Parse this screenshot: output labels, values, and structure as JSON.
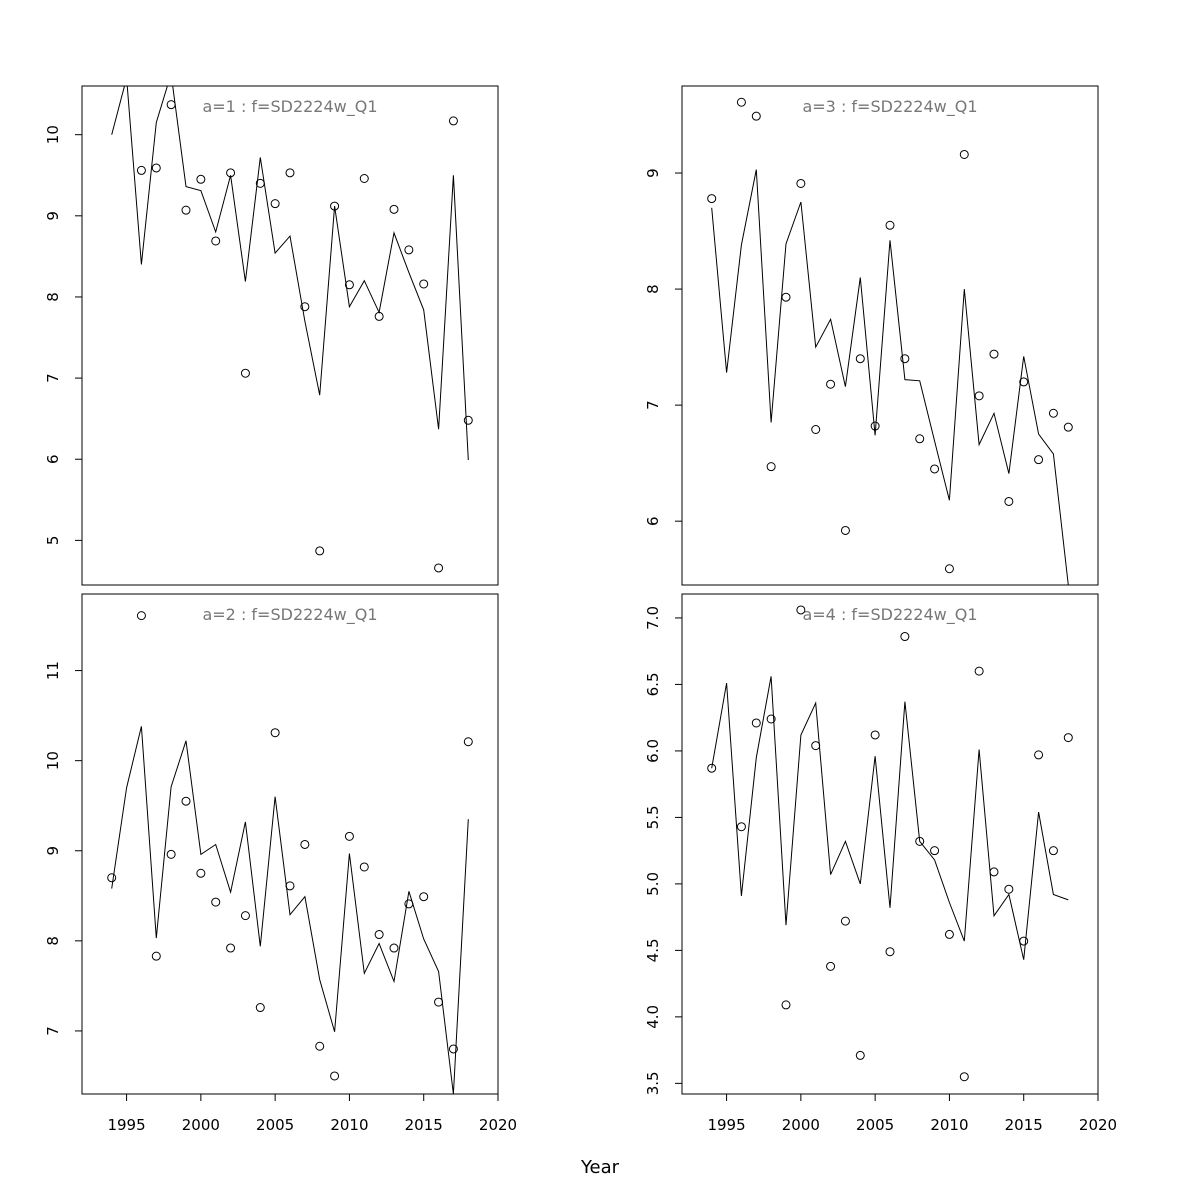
{
  "xlabel": "Year",
  "chart_data": [
    {
      "type": "scatter",
      "title": "a=1  :  f=SD2224w_Q1",
      "xlim": [
        1992,
        2020
      ],
      "ylim": [
        4.45,
        10.6
      ],
      "xticks": [
        1995,
        2000,
        2005,
        2010,
        2015,
        2020
      ],
      "yticks": [
        5,
        6,
        7,
        8,
        9,
        10
      ],
      "ytick_labels": [
        "5",
        "6",
        "7",
        "8",
        "9",
        "10"
      ],
      "x": [
        1994,
        1995,
        1996,
        1997,
        1998,
        1999,
        2000,
        2001,
        2002,
        2003,
        2004,
        2005,
        2006,
        2007,
        2008,
        2009,
        2010,
        2011,
        2012,
        2013,
        2014,
        2015,
        2016,
        2017,
        2018
      ],
      "observed": [
        null,
        null,
        9.56,
        9.59,
        10.37,
        9.07,
        9.45,
        8.69,
        9.53,
        7.06,
        9.4,
        9.15,
        9.53,
        7.88,
        4.87,
        9.12,
        8.15,
        9.46,
        7.76,
        9.08,
        8.58,
        8.16,
        4.66,
        10.17,
        6.48
      ],
      "fitted": [
        10.0,
        10.7,
        8.4,
        10.15,
        10.75,
        9.36,
        9.31,
        8.8,
        9.5,
        8.19,
        9.72,
        8.54,
        8.75,
        7.7,
        6.79,
        9.12,
        7.88,
        8.2,
        7.81,
        8.79,
        8.3,
        7.84,
        6.37,
        9.5,
        5.99
      ]
    },
    {
      "type": "scatter",
      "title": "a=3  :  f=SD2224w_Q1",
      "xlim": [
        1992,
        2020
      ],
      "ylim": [
        5.45,
        9.75
      ],
      "xticks": [
        1995,
        2000,
        2005,
        2010,
        2015,
        2020
      ],
      "yticks": [
        6,
        7,
        8,
        9
      ],
      "ytick_labels": [
        "6",
        "7",
        "8",
        "9"
      ],
      "x": [
        1994,
        1995,
        1996,
        1997,
        1998,
        1999,
        2000,
        2001,
        2002,
        2003,
        2004,
        2005,
        2006,
        2007,
        2008,
        2009,
        2010,
        2011,
        2012,
        2013,
        2014,
        2015,
        2016,
        2017,
        2018
      ],
      "observed": [
        8.78,
        null,
        9.61,
        9.49,
        6.47,
        7.93,
        8.91,
        6.79,
        7.18,
        5.92,
        7.4,
        6.82,
        8.55,
        7.4,
        6.71,
        6.45,
        5.59,
        9.16,
        7.08,
        7.44,
        6.17,
        7.2,
        6.53,
        6.93,
        6.81
      ],
      "fitted": [
        8.7,
        7.28,
        8.38,
        9.03,
        6.85,
        8.39,
        8.75,
        7.5,
        7.74,
        7.16,
        8.1,
        6.74,
        8.42,
        7.22,
        7.21,
        6.69,
        6.18,
        8.0,
        6.66,
        6.93,
        6.41,
        7.42,
        6.75,
        6.58,
        5.45
      ]
    },
    {
      "type": "scatter",
      "title": "a=2  :  f=SD2224w_Q1",
      "xlim": [
        1992,
        2020
      ],
      "ylim": [
        6.3,
        11.85
      ],
      "xticks": [
        1995,
        2000,
        2005,
        2010,
        2015,
        2020
      ],
      "yticks": [
        7,
        8,
        9,
        10,
        11
      ],
      "ytick_labels": [
        "7",
        "8",
        "9",
        "10",
        "11"
      ],
      "x": [
        1994,
        1995,
        1996,
        1997,
        1998,
        1999,
        2000,
        2001,
        2002,
        2003,
        2004,
        2005,
        2006,
        2007,
        2008,
        2009,
        2010,
        2011,
        2012,
        2013,
        2014,
        2015,
        2016,
        2017,
        2018
      ],
      "observed": [
        8.7,
        null,
        11.61,
        7.83,
        8.96,
        9.55,
        8.75,
        8.43,
        7.92,
        8.28,
        7.26,
        10.31,
        8.61,
        9.07,
        6.83,
        6.5,
        9.16,
        8.82,
        8.07,
        7.92,
        8.41,
        8.49,
        7.32,
        6.8,
        10.21
      ],
      "fitted": [
        8.58,
        9.7,
        10.38,
        8.03,
        9.71,
        10.22,
        8.96,
        9.07,
        8.54,
        9.32,
        7.94,
        9.6,
        8.29,
        8.49,
        7.57,
        6.99,
        8.97,
        7.64,
        7.97,
        7.55,
        8.55,
        8.02,
        7.66,
        6.3,
        9.35
      ]
    },
    {
      "type": "scatter",
      "title": "a=4  :  f=SD2224w_Q1",
      "xlim": [
        1992,
        2020
      ],
      "ylim": [
        3.42,
        7.18
      ],
      "xticks": [
        1995,
        2000,
        2005,
        2010,
        2015,
        2020
      ],
      "yticks": [
        3.5,
        4.0,
        4.5,
        5.0,
        5.5,
        6.0,
        6.5,
        7.0
      ],
      "ytick_labels": [
        "3.5",
        "4.0",
        "4.5",
        "5.0",
        "5.5",
        "6.0",
        "6.5",
        "7.0"
      ],
      "x": [
        1994,
        1995,
        1996,
        1997,
        1998,
        1999,
        2000,
        2001,
        2002,
        2003,
        2004,
        2005,
        2006,
        2007,
        2008,
        2009,
        2010,
        2011,
        2012,
        2013,
        2014,
        2015,
        2016,
        2017,
        2018
      ],
      "observed": [
        5.87,
        null,
        5.43,
        6.21,
        6.24,
        4.09,
        7.06,
        6.04,
        4.38,
        4.72,
        3.71,
        6.12,
        4.49,
        6.86,
        5.32,
        5.25,
        4.62,
        3.55,
        6.6,
        5.09,
        4.96,
        4.57,
        5.97,
        5.25,
        6.1
      ],
      "fitted": [
        5.87,
        6.51,
        4.91,
        5.95,
        6.56,
        4.69,
        6.12,
        6.36,
        5.07,
        5.32,
        5.0,
        5.96,
        4.82,
        6.37,
        5.32,
        5.18,
        4.86,
        4.57,
        6.01,
        4.76,
        4.92,
        4.43,
        5.54,
        4.92,
        4.88
      ]
    }
  ]
}
